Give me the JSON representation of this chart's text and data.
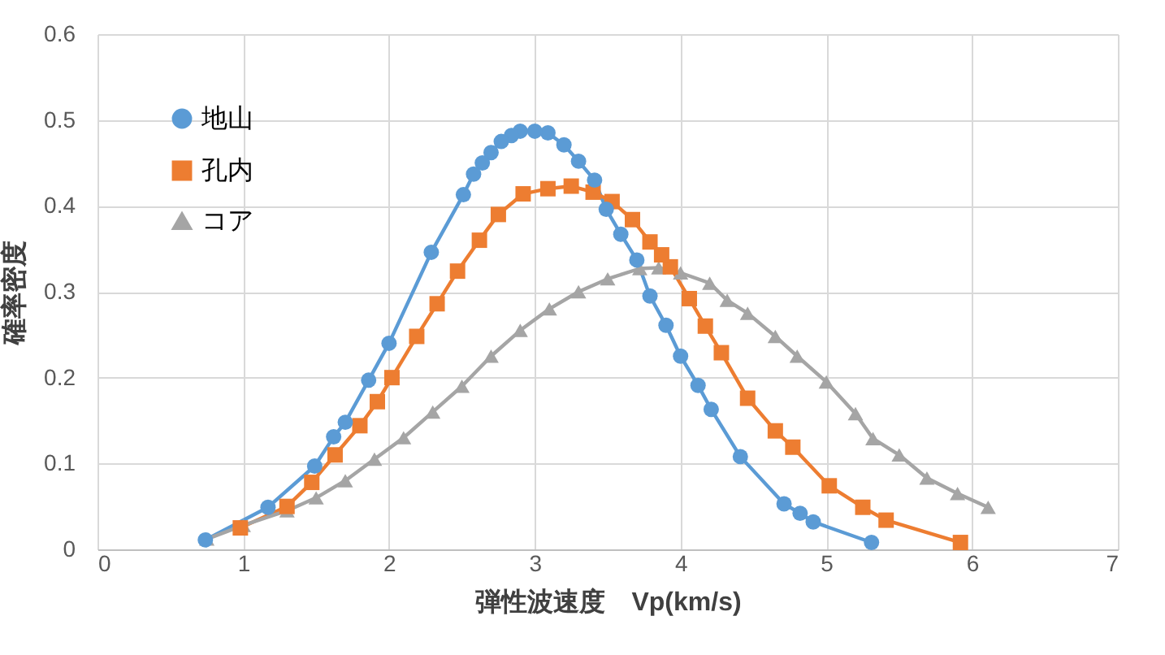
{
  "chart_data": {
    "type": "line",
    "xlabel": "弾性波速度　Vp(km/s)",
    "ylabel": "確率密度",
    "xlim": [
      0,
      7
    ],
    "xticks": [
      0,
      1,
      2,
      3,
      4,
      5,
      6,
      7
    ],
    "ylim": [
      0,
      0.6
    ],
    "yticks": [
      0,
      0.1,
      0.2,
      0.3,
      0.4,
      0.5,
      0.6
    ],
    "grid": true,
    "legend": "top left",
    "line_style": "solid",
    "series": [
      {
        "name": "地山",
        "color": "#5b9bd5",
        "marker": "circle",
        "x": [
          0.74,
          1.17,
          1.49,
          1.62,
          1.7,
          1.86,
          2.0,
          2.29,
          2.51,
          2.58,
          2.64,
          2.7,
          2.77,
          2.84,
          2.9,
          3.0,
          3.09,
          3.2,
          3.3,
          3.41,
          3.49,
          3.59,
          3.7,
          3.79,
          3.9,
          4.0,
          4.12,
          4.21,
          4.41,
          4.71,
          4.82,
          4.91,
          5.31
        ],
        "values": [
          0.011,
          0.049,
          0.097,
          0.131,
          0.148,
          0.197,
          0.24,
          0.346,
          0.413,
          0.437,
          0.45,
          0.462,
          0.475,
          0.482,
          0.487,
          0.487,
          0.485,
          0.471,
          0.452,
          0.43,
          0.396,
          0.367,
          0.337,
          0.295,
          0.261,
          0.225,
          0.191,
          0.163,
          0.108,
          0.053,
          0.042,
          0.032,
          0.008
        ]
      },
      {
        "name": "孔内",
        "color": "#ed7d31",
        "marker": "square",
        "x": [
          0.98,
          1.3,
          1.47,
          1.63,
          1.8,
          1.92,
          2.02,
          2.19,
          2.33,
          2.47,
          2.62,
          2.75,
          2.92,
          3.09,
          3.25,
          3.4,
          3.53,
          3.67,
          3.79,
          3.87,
          3.93,
          4.06,
          4.17,
          4.28,
          4.46,
          4.65,
          4.77,
          5.02,
          5.25,
          5.41,
          5.92
        ],
        "values": [
          0.025,
          0.05,
          0.078,
          0.11,
          0.144,
          0.172,
          0.2,
          0.248,
          0.286,
          0.324,
          0.36,
          0.39,
          0.414,
          0.42,
          0.423,
          0.416,
          0.405,
          0.384,
          0.358,
          0.343,
          0.329,
          0.292,
          0.26,
          0.229,
          0.176,
          0.138,
          0.119,
          0.074,
          0.049,
          0.034,
          0.008
        ]
      },
      {
        "name": "コア",
        "color": "#a5a5a5",
        "marker": "triangle",
        "x": [
          0.75,
          1.0,
          1.3,
          1.5,
          1.7,
          1.9,
          2.1,
          2.3,
          2.5,
          2.7,
          2.9,
          3.1,
          3.3,
          3.5,
          3.72,
          3.85,
          4.0,
          4.2,
          4.32,
          4.46,
          4.65,
          4.8,
          5.0,
          5.2,
          5.32,
          5.5,
          5.69,
          5.9,
          6.11
        ],
        "values": [
          0.012,
          0.028,
          0.045,
          0.06,
          0.08,
          0.105,
          0.13,
          0.16,
          0.19,
          0.225,
          0.255,
          0.28,
          0.3,
          0.315,
          0.327,
          0.328,
          0.322,
          0.31,
          0.29,
          0.275,
          0.248,
          0.225,
          0.195,
          0.158,
          0.129,
          0.11,
          0.083,
          0.065,
          0.049
        ]
      }
    ]
  }
}
